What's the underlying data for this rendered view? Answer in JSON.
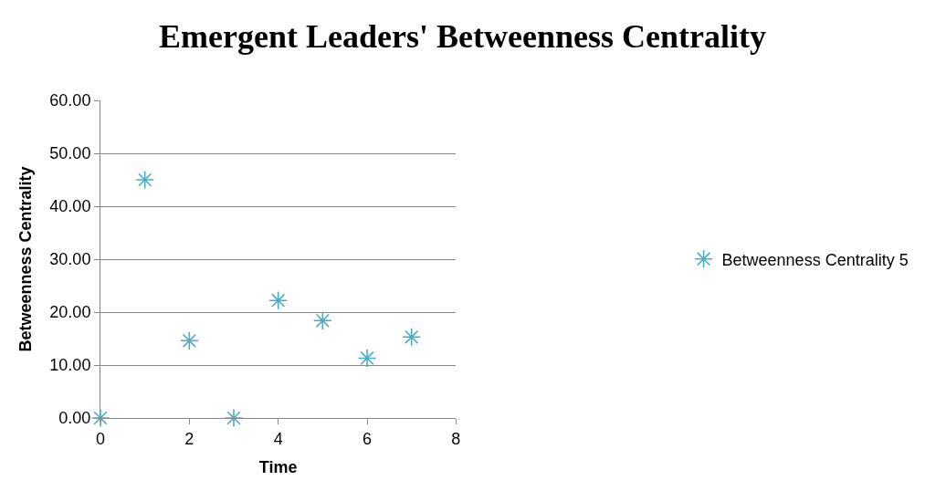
{
  "chart_data": {
    "type": "scatter",
    "title": "Emergent Leaders' Betweenness Centrality",
    "xlabel": "Time",
    "ylabel": "Betweenness Centrality",
    "x": [
      0,
      1,
      2,
      3,
      4,
      5,
      6,
      7
    ],
    "series": [
      {
        "name": "Betweenness Centrality 5",
        "color": "#4bacc6",
        "values": [
          0,
          45.0,
          14.6,
          0,
          22.2,
          18.4,
          11.3,
          15.3
        ]
      }
    ],
    "xlim": [
      0,
      8
    ],
    "xticks": [
      0,
      2,
      4,
      6,
      8
    ],
    "ylim": [
      0,
      60
    ],
    "yticks": [
      {
        "value": 0,
        "label": "0.00"
      },
      {
        "value": 10,
        "label": "10.00"
      },
      {
        "value": 20,
        "label": "20.00"
      },
      {
        "value": 30,
        "label": "30.00"
      },
      {
        "value": 40,
        "label": "40.00"
      },
      {
        "value": 50,
        "label": "50.00"
      },
      {
        "value": 60,
        "label": "60.00"
      }
    ],
    "grid": "y",
    "legend": "right",
    "marker": "cross"
  }
}
